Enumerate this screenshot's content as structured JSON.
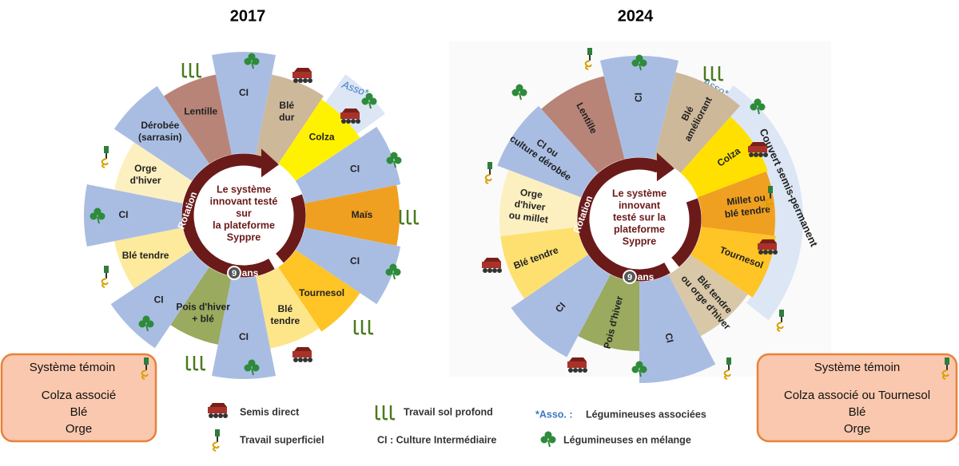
{
  "wheels": [
    {
      "year": "2017",
      "asso": "Asso*",
      "center": {
        "rotation": "Rotation",
        "lines": [
          "Le système",
          "innovant testé",
          "sur",
          "la plateforme",
          "Syppre"
        ],
        "years_num": "9",
        "years_unit": "ans"
      },
      "segments": [
        {
          "label": [
            "CI"
          ],
          "color": "#a9bde3"
        },
        {
          "label": [
            "Blé",
            "dur"
          ],
          "color": "#cdb89a"
        },
        {
          "label": [
            "Colza"
          ],
          "color": "#fff200"
        },
        {
          "label": [
            "CI"
          ],
          "color": "#a9bde3"
        },
        {
          "label": [
            "Maïs"
          ],
          "color": "#f0a020"
        },
        {
          "label": [
            "CI"
          ],
          "color": "#a9bde3"
        },
        {
          "label": [
            "Tournesol"
          ],
          "color": "#ffc425"
        },
        {
          "label": [
            "Blé",
            "tendre"
          ],
          "color": "#fde58a"
        },
        {
          "label": [
            "CI"
          ],
          "color": "#a9bde3"
        },
        {
          "label": [
            "Pois d'hiver",
            "+ blé"
          ],
          "color": "#9aaa5e"
        },
        {
          "label": [
            "CI"
          ],
          "color": "#a9bde3"
        },
        {
          "label": [
            "Blé tendre"
          ],
          "color": "#fdea9c"
        },
        {
          "label": [
            "CI"
          ],
          "color": "#a9bde3"
        },
        {
          "label": [
            "Orge",
            "d'hiver"
          ],
          "color": "#fdf0c0"
        },
        {
          "label": [
            "Dérobée",
            "(sarrasin)"
          ],
          "color": "#a9bde3"
        },
        {
          "label": [
            "Lentille"
          ],
          "color": "#b88478"
        }
      ]
    },
    {
      "year": "2024",
      "asso": "Asso*",
      "cover": "Couvert semis-permanent",
      "center": {
        "rotation": "Rotation",
        "lines": [
          "Le système",
          "innovant",
          "testé sur la",
          "plateforme",
          "Syppre"
        ],
        "years_num": "9",
        "years_unit": "ans"
      },
      "segments": [
        {
          "label": [
            "CI"
          ],
          "color": "#a9bde3"
        },
        {
          "label": [
            "Blé",
            "améliorant"
          ],
          "color": "#cdb89a"
        },
        {
          "label": [
            "Colza"
          ],
          "color": "#ffe000"
        },
        {
          "label": [
            "Millet ou",
            "blé tendre"
          ],
          "color": "#f0a020"
        },
        {
          "label": [
            "Tournesol"
          ],
          "color": "#ffc425"
        },
        {
          "label": [
            "Blé tendre",
            "ou orge d'hiver"
          ],
          "color": "#d8c8a8"
        },
        {
          "label": [
            "CI"
          ],
          "color": "#a9bde3"
        },
        {
          "label": [
            "Pois d'hiver"
          ],
          "color": "#9aaa5e"
        },
        {
          "label": [
            "CI"
          ],
          "color": "#a9bde3"
        },
        {
          "label": [
            "Blé tendre"
          ],
          "color": "#fde070"
        },
        {
          "label": [
            "Orge",
            "d'hiver",
            "ou millet"
          ],
          "color": "#fdf0c0"
        },
        {
          "label": [
            "CI ou",
            "culture dérobée"
          ],
          "color": "#a9bde3"
        },
        {
          "label": [
            "Lentille"
          ],
          "color": "#b88478"
        }
      ]
    }
  ],
  "temoin": [
    {
      "title": "Système témoin",
      "lines": [
        "Colza associé",
        "Blé",
        "Orge"
      ]
    },
    {
      "title": "Système témoin",
      "lines": [
        "Colza associé ou Tournesol",
        "Blé",
        "Orge"
      ]
    }
  ],
  "legend": {
    "semis_direct": "Semis direct",
    "travail_superficiel": "Travail superficiel",
    "travail_profond": "Travail sol profond",
    "ci": "CI :  Culture Intermédiaire",
    "asso_key": "*Asso. :",
    "asso_text": "Légumineuses associées",
    "melange": "Légumineuses en mélange"
  }
}
